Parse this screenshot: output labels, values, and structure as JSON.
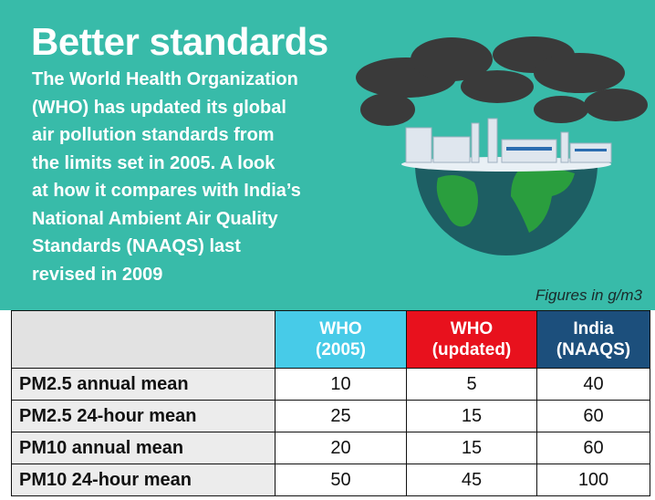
{
  "header": {
    "title": "Better standards",
    "description": [
      "The World Health Organization",
      "(WHO) has updated its global",
      "air pollution standards from",
      "the limits set in 2005. A look",
      "at how it compares with India’s",
      "National Ambient Air Quality",
      "Standards (NAAQS) last",
      "revised in 2009"
    ],
    "note": "Figures in g/m3"
  },
  "table": {
    "columns": [
      [
        "WHO",
        "(2005)"
      ],
      [
        "WHO",
        "(updated)"
      ],
      [
        "India",
        "(NAAQS)"
      ]
    ],
    "rows": [
      [
        "PM2.5 annual mean",
        10,
        5,
        40
      ],
      [
        "PM2.5 24-hour mean",
        25,
        15,
        60
      ],
      [
        "PM10 annual mean",
        20,
        15,
        60
      ],
      [
        "PM10 24-hour mean",
        50,
        45,
        100
      ]
    ]
  }
}
